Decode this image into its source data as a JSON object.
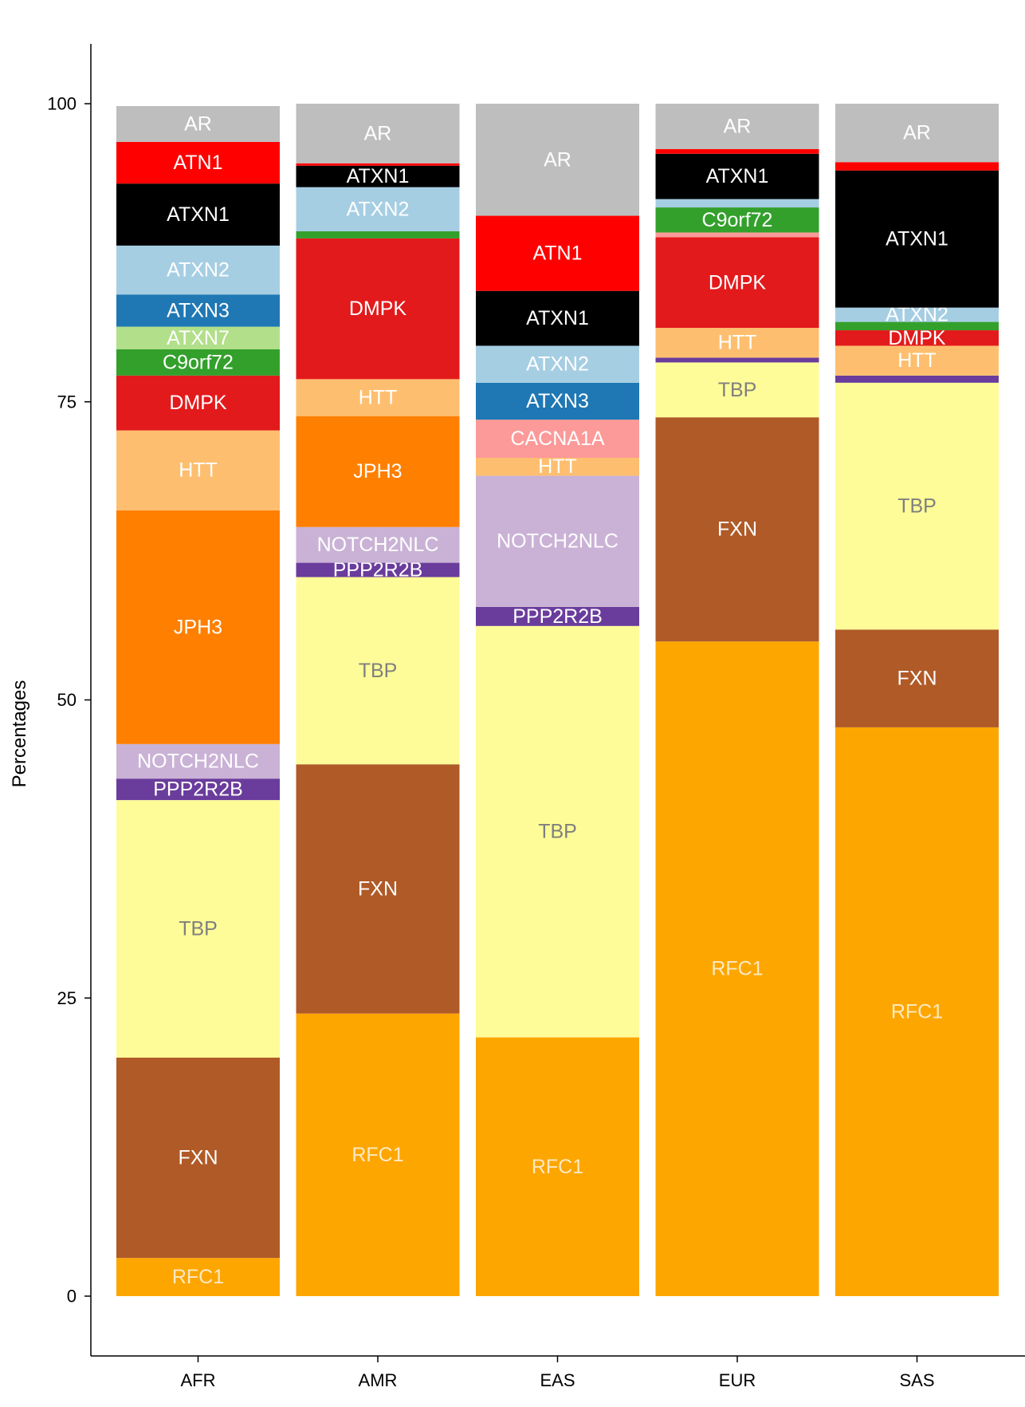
{
  "chart_data": {
    "type": "bar",
    "stacked": true,
    "categories": [
      "AFR",
      "AMR",
      "EAS",
      "EUR",
      "SAS"
    ],
    "ylabel": "Percentages",
    "xlabel": "",
    "ylim": [
      -5,
      105
    ],
    "yticks": [
      0,
      25,
      50,
      75,
      100
    ],
    "grid": false,
    "legend": "none (segments labeled inside bars)",
    "colors": {
      "RFC1": "#fda600",
      "FXN": "#b05a28",
      "TBP": "#fefc98",
      "PPP2R2B": "#6a3c9c",
      "NOTCH2NLC": "#cab2d6",
      "JPH3": "#ff7f00",
      "HTT": "#fdbf6f",
      "CACNA1A": "#fb9a99",
      "DMPK": "#e31a1c",
      "C9orf72": "#33a02c",
      "ATXN7": "#b2df8a",
      "ATXN3": "#1f78b4",
      "ATXN2": "#a6cee3",
      "ATXN1": "#000000",
      "ATN1": "#ff0000",
      "AR": "#bebebe"
    },
    "label_colors": {
      "RFC1": "#fde9c4",
      "FXN": "#ffffff",
      "TBP": "#7f7f7f",
      "PPP2R2B": "#ffffff",
      "NOTCH2NLC": "#ffffff",
      "JPH3": "#ffffff",
      "HTT": "#ffffff",
      "CACNA1A": "#ffffff",
      "DMPK": "#ffffff",
      "C9orf72": "#ffffff",
      "ATXN7": "#ffffff",
      "ATXN3": "#ffffff",
      "ATXN2": "#ffffff",
      "ATXN1": "#ffffff",
      "ATN1": "#ffffff",
      "AR": "#ffffff"
    },
    "series": [
      {
        "population": "AFR",
        "segments": [
          {
            "gene": "RFC1",
            "value": 3.2,
            "label": "RFC1"
          },
          {
            "gene": "FXN",
            "value": 16.8,
            "label": "FXN"
          },
          {
            "gene": "TBP",
            "value": 21.6,
            "label": "TBP"
          },
          {
            "gene": "PPP2R2B",
            "value": 1.8,
            "label": "PPP2R2B"
          },
          {
            "gene": "NOTCH2NLC",
            "value": 2.9,
            "label": "NOTCH2NLC"
          },
          {
            "gene": "JPH3",
            "value": 19.6,
            "label": "JPH3"
          },
          {
            "gene": "HTT",
            "value": 6.7,
            "label": "HTT"
          },
          {
            "gene": "DMPK",
            "value": 4.6,
            "label": "DMPK"
          },
          {
            "gene": "C9orf72",
            "value": 2.2,
            "label": "C9orf72"
          },
          {
            "gene": "ATXN7",
            "value": 1.9,
            "label": "ATXN7"
          },
          {
            "gene": "ATXN3",
            "value": 2.7,
            "label": "ATXN3"
          },
          {
            "gene": "ATXN2",
            "value": 4.1,
            "label": "ATXN2"
          },
          {
            "gene": "ATXN1",
            "value": 5.2,
            "label": "ATXN1"
          },
          {
            "gene": "ATN1",
            "value": 3.5,
            "label": "ATN1"
          },
          {
            "gene": "AR",
            "value": 3.0,
            "label": "AR"
          }
        ]
      },
      {
        "population": "AMR",
        "segments": [
          {
            "gene": "RFC1",
            "value": 23.7,
            "label": "RFC1"
          },
          {
            "gene": "FXN",
            "value": 20.9,
            "label": "FXN"
          },
          {
            "gene": "TBP",
            "value": 15.7,
            "label": "TBP"
          },
          {
            "gene": "PPP2R2B",
            "value": 1.2,
            "label": "PPP2R2B"
          },
          {
            "gene": "NOTCH2NLC",
            "value": 3.0,
            "label": "NOTCH2NLC"
          },
          {
            "gene": "JPH3",
            "value": 9.3,
            "label": "JPH3"
          },
          {
            "gene": "HTT",
            "value": 3.1,
            "label": "HTT"
          },
          {
            "gene": "DMPK",
            "value": 11.8,
            "label": "DMPK"
          },
          {
            "gene": "C9orf72",
            "value": 0.6,
            "label": ""
          },
          {
            "gene": "ATXN2",
            "value": 3.7,
            "label": "ATXN2"
          },
          {
            "gene": "ATXN1",
            "value": 1.8,
            "label": "ATXN1"
          },
          {
            "gene": "ATN1",
            "value": 0.2,
            "label": ""
          },
          {
            "gene": "AR",
            "value": 5.0,
            "label": "AR"
          }
        ]
      },
      {
        "population": "EAS",
        "segments": [
          {
            "gene": "RFC1",
            "value": 21.7,
            "label": "RFC1"
          },
          {
            "gene": "TBP",
            "value": 34.5,
            "label": "TBP"
          },
          {
            "gene": "PPP2R2B",
            "value": 1.6,
            "label": "PPP2R2B"
          },
          {
            "gene": "NOTCH2NLC",
            "value": 11.0,
            "label": "NOTCH2NLC"
          },
          {
            "gene": "HTT",
            "value": 1.5,
            "label": "HTT"
          },
          {
            "gene": "CACNA1A",
            "value": 3.2,
            "label": "CACNA1A"
          },
          {
            "gene": "ATXN3",
            "value": 3.1,
            "label": "ATXN3"
          },
          {
            "gene": "ATXN2",
            "value": 3.1,
            "label": "ATXN2"
          },
          {
            "gene": "ATXN1",
            "value": 4.6,
            "label": "ATXN1"
          },
          {
            "gene": "ATN1",
            "value": 6.3,
            "label": "ATN1"
          },
          {
            "gene": "AR",
            "value": 9.4,
            "label": "AR"
          }
        ]
      },
      {
        "population": "EUR",
        "segments": [
          {
            "gene": "RFC1",
            "value": 54.9,
            "label": "RFC1"
          },
          {
            "gene": "FXN",
            "value": 18.8,
            "label": "FXN"
          },
          {
            "gene": "TBP",
            "value": 4.6,
            "label": "TBP"
          },
          {
            "gene": "PPP2R2B",
            "value": 0.4,
            "label": ""
          },
          {
            "gene": "HTT",
            "value": 2.5,
            "label": "HTT"
          },
          {
            "gene": "DMPK",
            "value": 7.6,
            "label": "DMPK"
          },
          {
            "gene": "CACNA1A",
            "value": 0.4,
            "label": ""
          },
          {
            "gene": "C9orf72",
            "value": 2.1,
            "label": "C9orf72"
          },
          {
            "gene": "ATXN2",
            "value": 0.7,
            "label": ""
          },
          {
            "gene": "ATXN1",
            "value": 3.8,
            "label": "ATXN1"
          },
          {
            "gene": "ATN1",
            "value": 0.4,
            "label": ""
          },
          {
            "gene": "AR",
            "value": 3.8,
            "label": "AR"
          }
        ]
      },
      {
        "population": "SAS",
        "segments": [
          {
            "gene": "RFC1",
            "value": 47.7,
            "label": "RFC1"
          },
          {
            "gene": "FXN",
            "value": 8.2,
            "label": "FXN"
          },
          {
            "gene": "TBP",
            "value": 20.7,
            "label": "TBP"
          },
          {
            "gene": "PPP2R2B",
            "value": 0.6,
            "label": ""
          },
          {
            "gene": "HTT",
            "value": 2.5,
            "label": "HTT"
          },
          {
            "gene": "DMPK",
            "value": 1.3,
            "label": "DMPK"
          },
          {
            "gene": "C9orf72",
            "value": 0.7,
            "label": ""
          },
          {
            "gene": "ATXN2",
            "value": 1.2,
            "label": "ATXN2"
          },
          {
            "gene": "ATXN1",
            "value": 11.5,
            "label": "ATXN1"
          },
          {
            "gene": "ATN1",
            "value": 0.7,
            "label": ""
          },
          {
            "gene": "AR",
            "value": 4.9,
            "label": "AR"
          }
        ]
      }
    ]
  }
}
